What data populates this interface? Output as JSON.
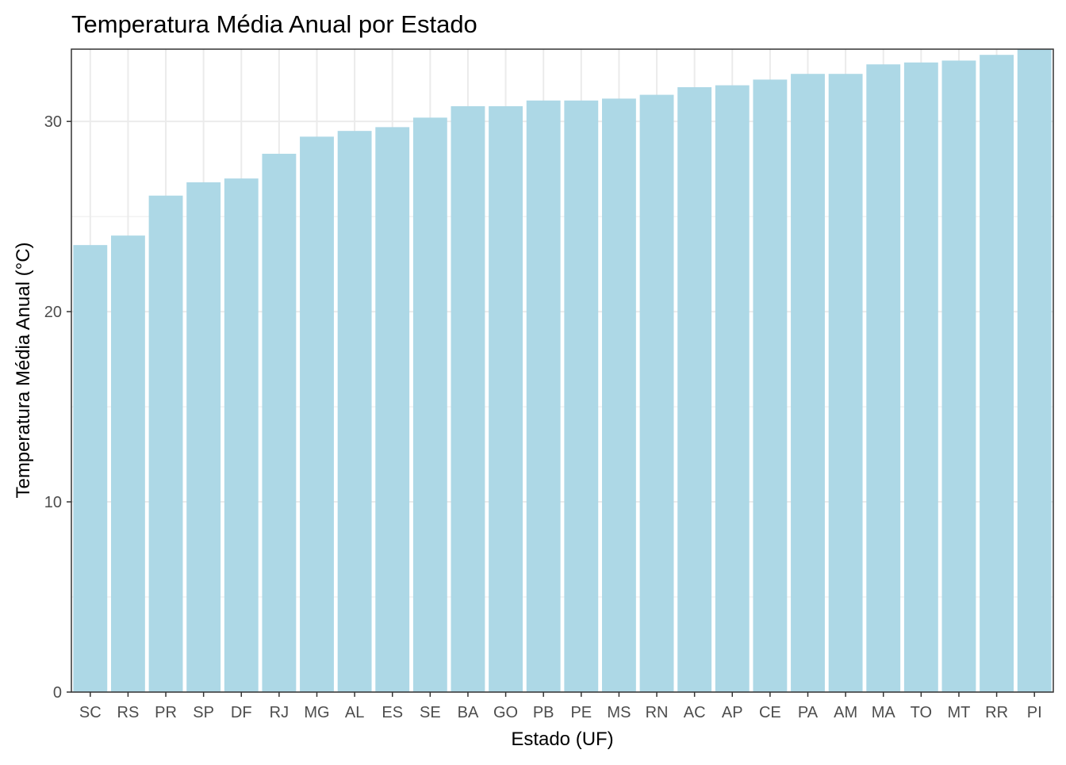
{
  "chart_data": {
    "type": "bar",
    "title": "Temperatura Média Anual por Estado",
    "xlabel": "Estado (UF)",
    "ylabel": "Temperatura Média Anual (°C)",
    "categories": [
      "SC",
      "RS",
      "PR",
      "SP",
      "DF",
      "RJ",
      "MG",
      "AL",
      "ES",
      "SE",
      "BA",
      "GO",
      "PB",
      "PE",
      "MS",
      "RN",
      "AC",
      "AP",
      "CE",
      "PA",
      "AM",
      "MA",
      "TO",
      "MT",
      "RR",
      "PI"
    ],
    "values": [
      23.5,
      24.0,
      26.1,
      26.8,
      27.0,
      28.3,
      29.2,
      29.5,
      29.7,
      30.2,
      30.8,
      30.8,
      31.1,
      31.1,
      31.2,
      31.4,
      31.8,
      31.9,
      32.2,
      32.5,
      32.5,
      33.0,
      33.1,
      33.2,
      33.5,
      33.8
    ],
    "yticks": [
      0,
      10,
      20,
      30
    ],
    "ylim": [
      0,
      33.8
    ],
    "grid": true,
    "legend": "none",
    "bar_color": "#add8e6",
    "panel_background": "#ffffff",
    "grid_color": "#ebebeb",
    "panel_border_color": "#333333"
  }
}
